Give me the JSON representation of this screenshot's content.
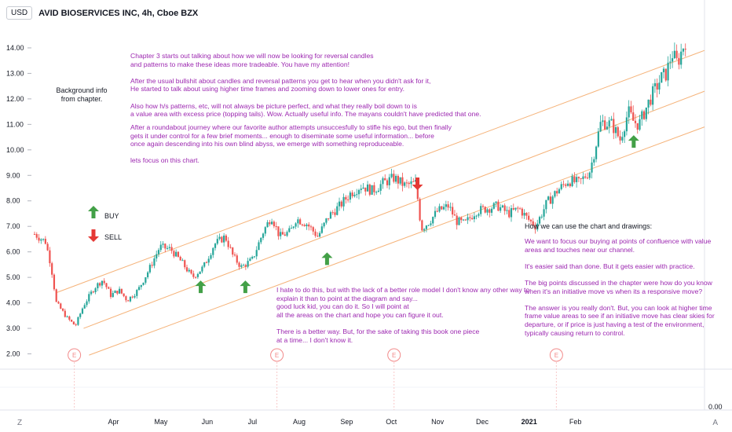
{
  "header": {
    "currency_button": "USD",
    "symbol_title": "AVID BIOSERVICES INC, 4h, Cboe BZX"
  },
  "chart_data": {
    "type": "candlestick",
    "title": "AVID BIOSERVICES INC, 4h, Cboe BZX",
    "y_ticks": [
      "14.00",
      "13.00",
      "12.00",
      "11.00",
      "10.00",
      "9.00",
      "8.00",
      "7.00",
      "6.00",
      "5.00",
      "4.00",
      "3.00",
      "2.00"
    ],
    "ylim": [
      1.4,
      15.2
    ],
    "x_ticks": [
      {
        "label": "Apr",
        "t": 0.145
      },
      {
        "label": "May",
        "t": 0.232
      },
      {
        "label": "Jun",
        "t": 0.317
      },
      {
        "label": "Jul",
        "t": 0.4
      },
      {
        "label": "Aug",
        "t": 0.486
      },
      {
        "label": "Sep",
        "t": 0.573
      },
      {
        "label": "Oct",
        "t": 0.655
      },
      {
        "label": "Nov",
        "t": 0.74
      },
      {
        "label": "Dec",
        "t": 0.822
      },
      {
        "label": "2021",
        "t": 0.908
      },
      {
        "label": "Feb",
        "t": 0.993
      }
    ],
    "close_path": [
      [
        0.0,
        6.7
      ],
      [
        0.02,
        6.4
      ],
      [
        0.03,
        5.5
      ],
      [
        0.04,
        4.0
      ],
      [
        0.06,
        3.4
      ],
      [
        0.075,
        3.1
      ],
      [
        0.09,
        3.9
      ],
      [
        0.11,
        4.6
      ],
      [
        0.125,
        4.9
      ],
      [
        0.14,
        4.3
      ],
      [
        0.155,
        4.5
      ],
      [
        0.17,
        4.1
      ],
      [
        0.19,
        4.5
      ],
      [
        0.21,
        5.3
      ],
      [
        0.23,
        6.2
      ],
      [
        0.25,
        6.1
      ],
      [
        0.27,
        5.6
      ],
      [
        0.29,
        5.0
      ],
      [
        0.31,
        5.4
      ],
      [
        0.33,
        6.3
      ],
      [
        0.35,
        6.6
      ],
      [
        0.365,
        5.8
      ],
      [
        0.38,
        5.4
      ],
      [
        0.4,
        5.7
      ],
      [
        0.42,
        6.8
      ],
      [
        0.435,
        7.4
      ],
      [
        0.45,
        6.6
      ],
      [
        0.47,
        6.8
      ],
      [
        0.48,
        7.3
      ],
      [
        0.5,
        7.1
      ],
      [
        0.52,
        6.6
      ],
      [
        0.54,
        7.4
      ],
      [
        0.56,
        7.8
      ],
      [
        0.58,
        8.3
      ],
      [
        0.6,
        8.6
      ],
      [
        0.62,
        8.4
      ],
      [
        0.64,
        8.7
      ],
      [
        0.66,
        8.9
      ],
      [
        0.68,
        8.6
      ],
      [
        0.7,
        8.7
      ],
      [
        0.71,
        6.9
      ],
      [
        0.725,
        7.2
      ],
      [
        0.74,
        7.6
      ],
      [
        0.76,
        7.8
      ],
      [
        0.775,
        7.2
      ],
      [
        0.79,
        7.1
      ],
      [
        0.81,
        7.6
      ],
      [
        0.83,
        7.7
      ],
      [
        0.85,
        7.8
      ],
      [
        0.87,
        7.5
      ],
      [
        0.89,
        7.7
      ],
      [
        0.905,
        7.3
      ],
      [
        0.92,
        7.0
      ],
      [
        0.94,
        7.9
      ],
      [
        0.96,
        8.4
      ],
      [
        0.98,
        8.8
      ],
      [
        1.0,
        8.7
      ],
      [
        1.02,
        9.2
      ],
      [
        1.04,
        11.1
      ],
      [
        1.06,
        11.0
      ],
      [
        1.075,
        10.4
      ],
      [
        1.09,
        11.5
      ],
      [
        1.1,
        11.1
      ],
      [
        1.11,
        11.0
      ],
      [
        1.13,
        12.0
      ],
      [
        1.15,
        12.8
      ],
      [
        1.16,
        13.0
      ],
      [
        1.17,
        13.8
      ],
      [
        1.18,
        13.4
      ],
      [
        1.195,
        14.3
      ]
    ],
    "channel_lines": [
      {
        "from": [
          0.04,
          4.4
        ],
        "to": [
          1.23,
          13.9
        ]
      },
      {
        "from": [
          0.09,
          3.0
        ],
        "to": [
          1.23,
          12.3
        ]
      },
      {
        "from": [
          0.1,
          1.95
        ],
        "to": [
          1.23,
          10.9
        ]
      }
    ],
    "buy_arrows": [
      [
        0.305,
        4.6
      ],
      [
        0.387,
        4.6
      ],
      [
        0.537,
        5.7
      ],
      [
        1.1,
        10.3
      ]
    ],
    "sell_arrows": [
      [
        0.703,
        8.7
      ]
    ],
    "earnings_markers": [
      [
        0.073,
        "E"
      ],
      [
        0.445,
        "E"
      ],
      [
        0.66,
        "E"
      ],
      [
        0.958,
        "E"
      ]
    ],
    "legend": {
      "buy": "BUY",
      "sell": "SELL"
    },
    "lower_axis_value": "0.00"
  },
  "notes": {
    "chapter_note": "Chapter 3 starts out talking about how we will now be looking for reversal candles\nand patterns to make these ideas more tradeable. You have my attention!\n\nAfter the usual bullshit about candles and reversal patterns you get to hear when you didn't ask for it,\nHe started to talk about using higher time frames and zooming down to lower ones for entry.\n\nAlso how h/s patterns, etc, will not always be picture perfect, and what they really boil down to is\na value area with excess price (topping tails). Wow. Actually useful info. The mayans couldn't have predicted that one.",
    "journey_note": "After a roundabout journey where our favorite author attempts unsuccesfully to stifle his ego, but then finally\ngets it under control for a few brief moments... enough to diseminate some useful information... before\nonce again descending into his own blind abyss, we emerge with something reproduceable.\n\nlets focus on this chart.",
    "background_info": "Background info\nfrom chapter.",
    "pointing_note": "I hate to do this, but with the lack of a better role model I don't know any other way to\nexplain it than to point at the diagram and say...\ngood luck kid, you can do it. So I will point at\nall the areas on the chart and hope you can figure it out.\n\nThere is a better way. But, for the sake of taking this book one piece\nat a time... I don't know it.",
    "how_title": "How we can use the chart and drawings:",
    "how_body": "We want to focus our buying at points of confluence with value\nareas and touches near our channel.\n\nIt's easier said than done. But it gets easier with practice.\n\nThe big points discussed in the chapter were how do you know\nwhen it's an initiative move vs when its a responsive move?\n\nThe answer is you really don't. But, you can look at higher time\nframe value areas to see if an initiative move has clear skies for\ndeparture, or if price is just having a test of the environment,\ntypically causing return to control."
  },
  "colors": {
    "up": "#26a69a",
    "down": "#ef5350",
    "channel": "#f5b37a",
    "buy_arrow": "#43a047",
    "sell_arrow": "#e53935",
    "note": "#9c27b0",
    "earnings": "#f28b8b"
  },
  "bottom_bar": {
    "left_icon": "Z",
    "right_icon": "A"
  }
}
